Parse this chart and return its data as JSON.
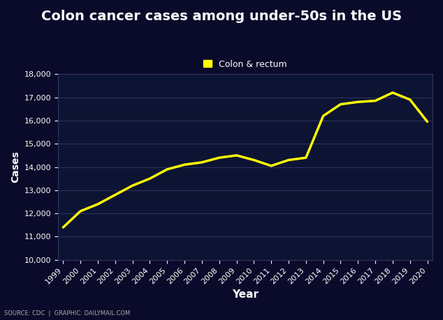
{
  "title": "Colon cancer cases among under-50s in the US",
  "xlabel": "Year",
  "ylabel": "Cases",
  "legend_label": "Colon & rectum",
  "source_text": "SOURCE: CDC  |  GRAPHIC: DAILYMAIL.COM",
  "years": [
    1999,
    2000,
    2001,
    2002,
    2003,
    2004,
    2005,
    2006,
    2007,
    2008,
    2009,
    2010,
    2011,
    2012,
    2013,
    2014,
    2015,
    2016,
    2017,
    2018,
    2019,
    2020
  ],
  "values": [
    11400,
    12100,
    12400,
    12800,
    13200,
    13500,
    13900,
    14100,
    14200,
    14400,
    14500,
    14300,
    14050,
    14300,
    14400,
    16200,
    16700,
    16800,
    16850,
    17200,
    16900,
    15950
  ],
  "line_color": "#FFFF00",
  "line_width": 2.5,
  "bg_color": "#0a0a2a",
  "plot_bg_color": "#0d1433",
  "grid_color": "#333366",
  "text_color": "#ffffff",
  "legend_marker_color": "#FFFF00",
  "ylim": [
    10000,
    18000
  ],
  "yticks": [
    10000,
    11000,
    12000,
    13000,
    14000,
    15000,
    16000,
    17000,
    18000
  ]
}
